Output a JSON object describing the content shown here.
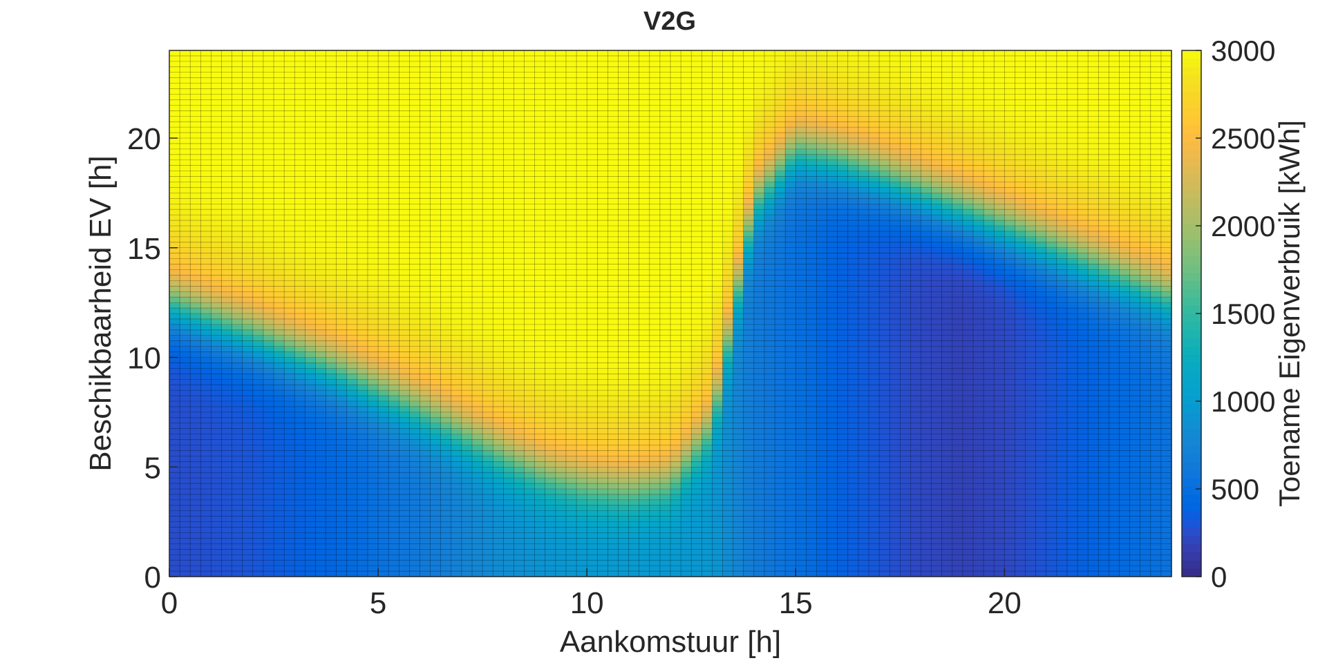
{
  "chart_data": {
    "type": "heatmap",
    "title": "V2G",
    "xlabel": "Aankomstuur [h]",
    "ylabel": "Beschikbaarheid EV [h]",
    "colorbar_label": "Toename Eigenverbruik [kWh]",
    "xlim": [
      0,
      24
    ],
    "ylim": [
      0,
      24
    ],
    "clim": [
      0,
      3000
    ],
    "x_ticks": [
      0,
      5,
      10,
      15,
      20
    ],
    "y_ticks": [
      0,
      5,
      10,
      15,
      20
    ],
    "colorbar_ticks": [
      0,
      500,
      1000,
      1500,
      2000,
      2500,
      3000
    ],
    "colormap": "parula",
    "grid": "mesh lines on",
    "x_resolution_h": 0.25,
    "y_resolution_h": 0.25,
    "boundary_profile": {
      "x": [
        0,
        1,
        2,
        3,
        4,
        5,
        6,
        7,
        8,
        9,
        10,
        11,
        12,
        13,
        13.5,
        14,
        15,
        16,
        17,
        18,
        19,
        20,
        21,
        22,
        23,
        24
      ],
      "y": [
        12.5,
        11.7,
        11.0,
        10.2,
        9.4,
        8.5,
        7.6,
        6.6,
        5.6,
        4.7,
        4.2,
        4.0,
        4.3,
        7.0,
        12.0,
        17.0,
        19.5,
        19.0,
        18.3,
        17.5,
        16.7,
        15.9,
        15.1,
        14.3,
        13.5,
        12.7
      ]
    },
    "low_region_values_kWh": {
      "x": [
        0,
        2,
        4,
        6,
        8,
        10,
        12,
        13,
        14,
        16,
        18,
        19,
        20,
        22,
        24
      ],
      "value": [
        250,
        300,
        420,
        620,
        850,
        950,
        950,
        950,
        650,
        380,
        220,
        180,
        220,
        380,
        550
      ]
    },
    "plateau_value_kWh": 2420,
    "saturation_value_kWh": 3000
  }
}
